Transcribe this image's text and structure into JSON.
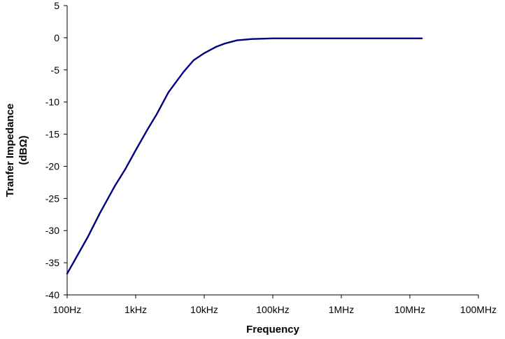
{
  "chart_data": {
    "type": "line",
    "title": "",
    "xlabel": "Frequency",
    "ylabel": [
      "Tranfer Impedance",
      "(dBΩ)"
    ],
    "x_scale": "log",
    "xlim": [
      100,
      100000000
    ],
    "ylim": [
      -40,
      5
    ],
    "x_ticks": [
      {
        "value": 100,
        "label": "100Hz"
      },
      {
        "value": 1000,
        "label": "1kHz"
      },
      {
        "value": 10000,
        "label": "10kHz"
      },
      {
        "value": 100000,
        "label": "100kHz"
      },
      {
        "value": 1000000,
        "label": "1MHz"
      },
      {
        "value": 10000000,
        "label": "10MHz"
      },
      {
        "value": 100000000,
        "label": "100MHz"
      }
    ],
    "y_ticks": [
      5,
      0,
      -5,
      -10,
      -15,
      -20,
      -25,
      -30,
      -35,
      -40
    ],
    "grid": false,
    "legend": "none",
    "series": [
      {
        "color": "#000080",
        "points": [
          {
            "x": 100,
            "y": -36.7
          },
          {
            "x": 200,
            "y": -31.0
          },
          {
            "x": 300,
            "y": -27.3
          },
          {
            "x": 500,
            "y": -23.0
          },
          {
            "x": 700,
            "y": -20.5
          },
          {
            "x": 1000,
            "y": -17.5
          },
          {
            "x": 1500,
            "y": -14.2
          },
          {
            "x": 2000,
            "y": -12.0
          },
          {
            "x": 3000,
            "y": -8.5
          },
          {
            "x": 5000,
            "y": -5.3
          },
          {
            "x": 7000,
            "y": -3.5
          },
          {
            "x": 10000,
            "y": -2.4
          },
          {
            "x": 15000,
            "y": -1.4
          },
          {
            "x": 20000,
            "y": -0.9
          },
          {
            "x": 30000,
            "y": -0.4
          },
          {
            "x": 50000,
            "y": -0.2
          },
          {
            "x": 100000,
            "y": -0.1
          },
          {
            "x": 1000000,
            "y": -0.1
          },
          {
            "x": 10000000,
            "y": -0.1
          },
          {
            "x": 15000000,
            "y": -0.1
          }
        ]
      }
    ]
  }
}
